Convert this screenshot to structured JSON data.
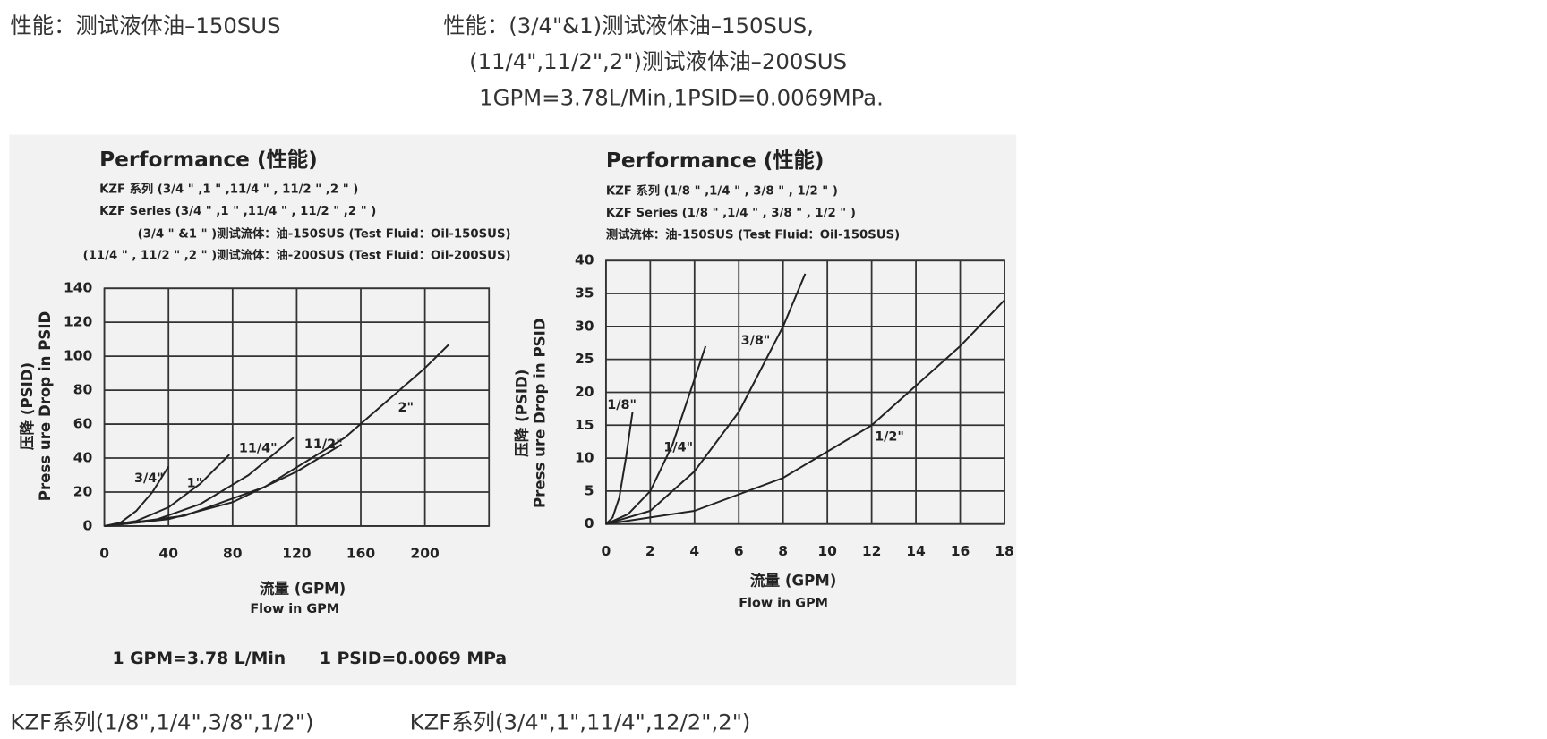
{
  "header": {
    "left": "性能：测试液体油–150SUS",
    "right": [
      "性能：(3/4\"&1)测试液体油–150SUS,",
      "(11/4\",11/2\",2\")测试液体油–200SUS",
      "1GPM=3.78L/Min,1PSID=0.0069MPa."
    ]
  },
  "chart_data": [
    {
      "type": "line",
      "title": "Performance (性能)",
      "subtitle": [
        "KZF  系列 (3/4 \" ,1 \" ,11/4 \" ,  11/2 \" ,2 \" )",
        "KZF  Series (3/4 \" ,1 \" ,11/4 \" ,  11/2 \" ,2 \" )",
        "(3/4 \" &1 \" )测试流体：油-150SUS (Test Fluid：Oil-150SUS)",
        "(11/4 \" ,  11/2 \" ,2 \" )测试流体：油-200SUS (Test Fluid：Oil-200SUS)"
      ],
      "ylabel": [
        "压降 (PSID)",
        "Press ure Drop in PSID"
      ],
      "xlabel": [
        "流量 (GPM)",
        "Flow in GPM"
      ],
      "note": [
        "1 GPM=3.78 L/Min",
        "1 PSID=0.0069 MPa"
      ],
      "xlim": [
        0,
        240
      ],
      "xticks": [
        0,
        40,
        80,
        120,
        160,
        200
      ],
      "ylim": [
        0,
        140
      ],
      "yticks": [
        0,
        20,
        40,
        60,
        80,
        100,
        120,
        140
      ],
      "grid": true,
      "series": [
        {
          "name": "3/4\"",
          "color": "#222222",
          "x": [
            0,
            10,
            20,
            30,
            40
          ],
          "values": [
            0,
            2,
            9,
            20,
            35
          ]
        },
        {
          "name": "1\"",
          "color": "#222222",
          "x": [
            0,
            20,
            40,
            60,
            78
          ],
          "values": [
            0,
            3,
            11,
            25,
            42
          ]
        },
        {
          "name": "11/4\"",
          "color": "#222222",
          "x": [
            0,
            30,
            60,
            90,
            118
          ],
          "values": [
            0,
            3,
            13,
            30,
            52
          ]
        },
        {
          "name": "11/2\"",
          "color": "#222222",
          "x": [
            0,
            40,
            80,
            120,
            148
          ],
          "values": [
            0,
            4,
            14,
            32,
            48
          ]
        },
        {
          "name": "2\"",
          "color": "#222222",
          "x": [
            0,
            50,
            100,
            150,
            200,
            215
          ],
          "values": [
            0,
            6,
            23,
            52,
            93,
            107
          ]
        }
      ]
    },
    {
      "type": "line",
      "title": "Performance (性能)",
      "subtitle": [
        "KZF  系列 (1/8 \" ,1/4 \" ,  3/8 \" ,  1/2 \" )",
        "KZF  Series (1/8 \" ,1/4 \" ,  3/8 \" ,  1/2 \" )",
        "测试流体：油-150SUS (Test Fluid：Oil-150SUS)"
      ],
      "ylabel": [
        "压降 (PSID)",
        "Press ure Drop in PSID"
      ],
      "xlabel": [
        "流量 (GPM)",
        "Flow in GPM"
      ],
      "xlim": [
        0,
        18
      ],
      "xticks": [
        0,
        2,
        4,
        6,
        8,
        10,
        12,
        14,
        16,
        18
      ],
      "ylim": [
        0,
        40
      ],
      "yticks": [
        0,
        5,
        10,
        15,
        20,
        25,
        30,
        35,
        40
      ],
      "grid": true,
      "series": [
        {
          "name": "1/8\"",
          "color": "#222222",
          "x": [
            0,
            0.3,
            0.6,
            0.9,
            1.2
          ],
          "values": [
            0,
            1,
            4,
            10,
            17
          ]
        },
        {
          "name": "1/4\"",
          "color": "#222222",
          "x": [
            0,
            1,
            2,
            3,
            4.5
          ],
          "values": [
            0,
            1.5,
            5,
            12,
            27
          ]
        },
        {
          "name": "3/8\"",
          "color": "#222222",
          "x": [
            0,
            2,
            4,
            6,
            8,
            9
          ],
          "values": [
            0,
            2,
            8,
            17,
            30,
            38
          ]
        },
        {
          "name": "1/2\"",
          "color": "#222222",
          "x": [
            0,
            4,
            8,
            12,
            16,
            18
          ],
          "values": [
            0,
            2,
            7,
            15,
            27,
            34
          ]
        }
      ]
    }
  ],
  "footer": {
    "left": "KZF系列(1/8\",1/4\",3/8\",1/2\")",
    "right": "KZF系列(3/4\",1\",11/4\",12/2\",2\")"
  }
}
